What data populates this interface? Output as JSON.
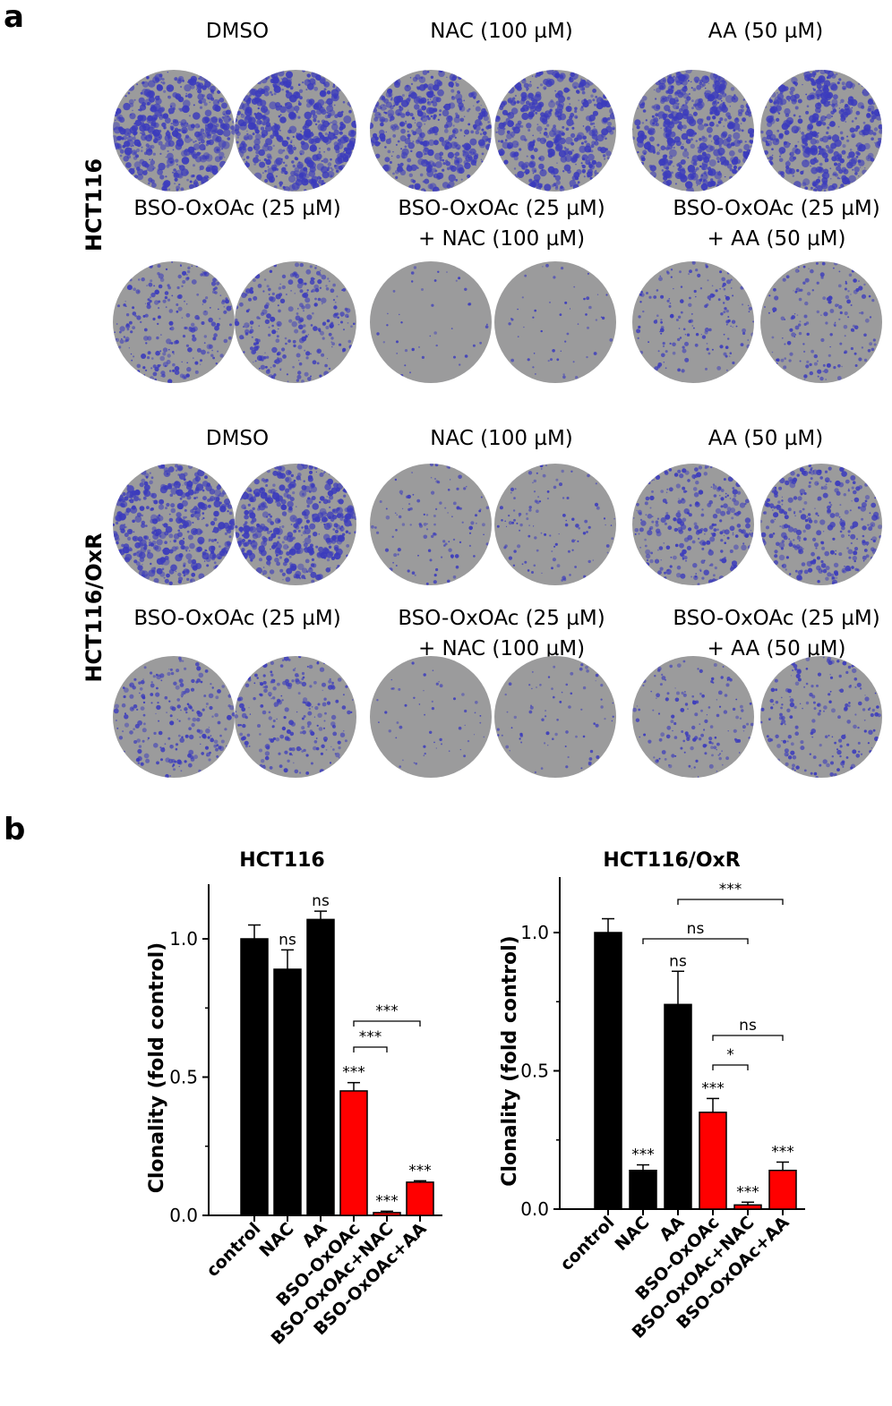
{
  "figure": {
    "panel_a_letter": "a",
    "panel_b_letter": "b",
    "blocks": [
      {
        "cell_line": "HCT116",
        "rows": [
          {
            "labels": [
              {
                "line1": "DMSO",
                "line2": ""
              },
              {
                "line1": "NAC (100 µM)",
                "line2": ""
              },
              {
                "line1": "AA (50 µM)",
                "line2": ""
              }
            ],
            "densities": [
              0.85,
              0.85,
              0.75,
              0.75,
              0.85,
              0.8
            ]
          },
          {
            "labels": [
              {
                "line1": "BSO-OxOAc (25 µM)",
                "line2": ""
              },
              {
                "line1": "BSO-OxOAc (25 µM)",
                "line2": "+ NAC (100 µM)"
              },
              {
                "line1": "BSO-OxOAc (25 µM)",
                "line2": "+ AA (50 µM)"
              }
            ],
            "densities": [
              0.4,
              0.45,
              0.02,
              0.04,
              0.25,
              0.25
            ]
          }
        ]
      },
      {
        "cell_line": "HCT116/OxR",
        "rows": [
          {
            "labels": [
              {
                "line1": "DMSO",
                "line2": ""
              },
              {
                "line1": "NAC (100 µM)",
                "line2": ""
              },
              {
                "line1": "AA (50 µM)",
                "line2": ""
              }
            ],
            "densities": [
              0.75,
              0.75,
              0.15,
              0.15,
              0.45,
              0.5
            ]
          },
          {
            "labels": [
              {
                "line1": "BSO-OxOAc (25 µM)",
                "line2": ""
              },
              {
                "line1": "BSO-OxOAc (25 µM)",
                "line2": "+ NAC (100 µM)"
              },
              {
                "line1": "BSO-OxOAc (25 µM)",
                "line2": "+ AA (50 µM)"
              }
            ],
            "densities": [
              0.35,
              0.35,
              0.04,
              0.08,
              0.22,
              0.3
            ]
          }
        ]
      }
    ],
    "colors": {
      "stain": "#3b3bbd",
      "dish": "#9b9b9c",
      "black_bar": "#000000",
      "red_bar": "#ff0000"
    }
  },
  "chart_data": [
    {
      "type": "bar",
      "title": "HCT116",
      "ylabel": "Clonality (fold control)",
      "ylim": [
        0,
        1.2
      ],
      "yticks": [
        "0.0",
        "0.5",
        "1.0"
      ],
      "categories": [
        "control",
        "NAC",
        "AA",
        "BSO-OxOAc",
        "BSO-OxOAc+NAC",
        "BSO-OxOAc+AA"
      ],
      "values": [
        1.0,
        0.89,
        1.07,
        0.45,
        0.01,
        0.12
      ],
      "errors": [
        0.05,
        0.07,
        0.03,
        0.03,
        0.005,
        0.005
      ],
      "bar_colors": [
        "black",
        "black",
        "black",
        "red",
        "red",
        "red"
      ],
      "annotations": [
        "",
        "ns",
        "ns",
        "***",
        "***",
        "***"
      ],
      "brackets": [
        {
          "from": "BSO-OxOAc",
          "to": "BSO-OxOAc+NAC",
          "label": "***"
        },
        {
          "from": "BSO-OxOAc",
          "to": "BSO-OxOAc+AA",
          "label": "***"
        }
      ]
    },
    {
      "type": "bar",
      "title": "HCT116/OxR",
      "ylabel": "Clonality (fold control)",
      "ylim": [
        0,
        1.2
      ],
      "yticks": [
        "0.0",
        "0.5",
        "1.0"
      ],
      "categories": [
        "control",
        "NAC",
        "AA",
        "BSO-OxOAc",
        "BSO-OxOAc+NAC",
        "BSO-OxOAc+AA"
      ],
      "values": [
        1.0,
        0.14,
        0.74,
        0.35,
        0.015,
        0.14
      ],
      "errors": [
        0.05,
        0.02,
        0.12,
        0.05,
        0.01,
        0.03
      ],
      "bar_colors": [
        "black",
        "black",
        "black",
        "red",
        "red",
        "red"
      ],
      "annotations": [
        "",
        "***",
        "ns",
        "***",
        "***",
        "***"
      ],
      "brackets": [
        {
          "from": "AA",
          "to": "BSO-OxOAc+AA",
          "label": "***"
        },
        {
          "from": "NAC",
          "to": "BSO-OxOAc+NAC",
          "label": "ns"
        },
        {
          "from": "BSO-OxOAc",
          "to": "BSO-OxOAc+AA",
          "label": "ns"
        },
        {
          "from": "BSO-OxOAc",
          "to": "BSO-OxOAc+NAC",
          "label": "*"
        }
      ]
    }
  ]
}
